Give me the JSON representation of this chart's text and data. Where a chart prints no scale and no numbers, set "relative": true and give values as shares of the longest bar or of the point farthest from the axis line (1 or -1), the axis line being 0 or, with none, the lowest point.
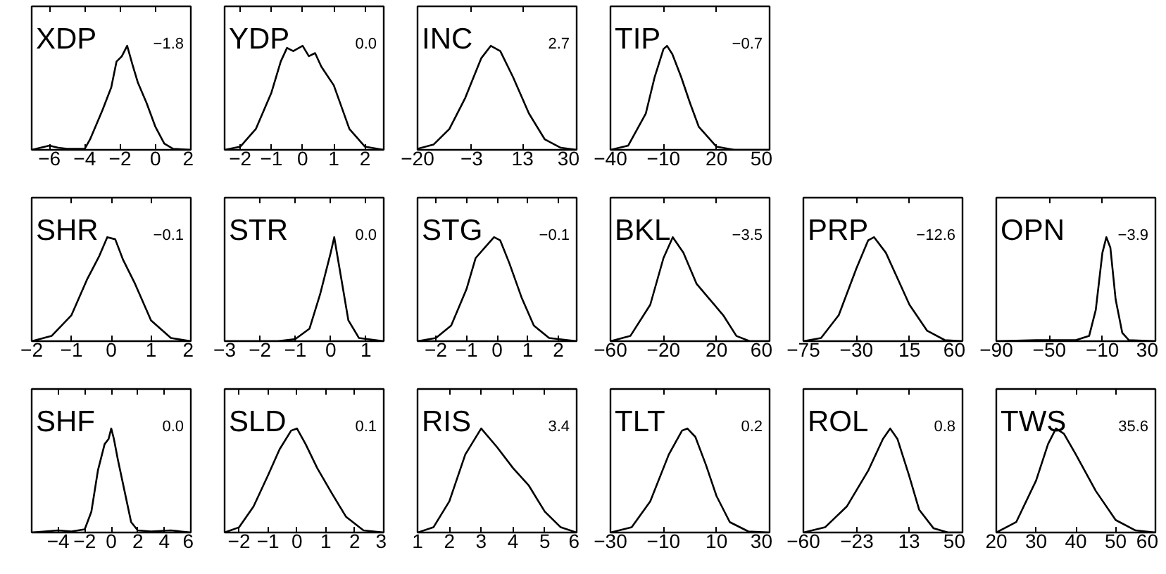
{
  "chart_data": [
    {
      "type": "line",
      "title": "XDP",
      "annotations": [
        "−1.8"
      ],
      "relative": true,
      "tick_labels": "x",
      "xlim": [
        -7,
        2
      ],
      "xticks": [
        {
          "value": -6,
          "label": "−6"
        },
        {
          "value": -4,
          "label": "−4"
        },
        {
          "value": -2,
          "label": "−2"
        },
        0,
        2
      ],
      "x": [
        -7,
        -6.5,
        -6,
        -5.5,
        -5,
        -4,
        -3.7,
        -3,
        -2.5,
        -2.2,
        -1.9,
        -1.6,
        -1.3,
        -1,
        -0.5,
        0,
        0.5,
        1,
        2
      ],
      "series": [
        {
          "color": "#000000",
          "values": [
            0,
            0.02,
            0.04,
            0.02,
            0.01,
            0.01,
            0.1,
            0.38,
            0.6,
            0.85,
            0.9,
            1,
            0.82,
            0.65,
            0.45,
            0.22,
            0.06,
            0.01,
            0
          ]
        }
      ]
    },
    {
      "type": "line",
      "title": "YDP",
      "annotations": [
        "0.0"
      ],
      "relative": true,
      "tick_labels": "x",
      "xlim": [
        -2.5,
        2.6
      ],
      "xticks": [
        {
          "value": -2,
          "label": "−2"
        },
        {
          "value": -1,
          "label": "−1"
        },
        0,
        1,
        2
      ],
      "x": [
        -2.5,
        -2,
        -1.5,
        -1,
        -0.7,
        -0.5,
        -0.3,
        0,
        0.2,
        0.4,
        0.6,
        1,
        1.5,
        2,
        2.6
      ],
      "series": [
        {
          "color": "#000000",
          "values": [
            0,
            0.03,
            0.2,
            0.55,
            0.85,
            0.98,
            0.95,
            1,
            0.9,
            0.93,
            0.8,
            0.62,
            0.2,
            0.03,
            0
          ]
        }
      ]
    },
    {
      "type": "line",
      "title": "INC",
      "annotations": [
        "2.7"
      ],
      "relative": true,
      "tick_labels": "x",
      "xlim": [
        -20,
        30
      ],
      "xticks": [
        {
          "value": -20,
          "label": "−20"
        },
        {
          "value": -3,
          "label": "−3"
        },
        13,
        30
      ],
      "x": [
        -20,
        -15,
        -10,
        -5,
        0,
        3,
        6,
        10,
        15,
        20,
        25,
        30
      ],
      "series": [
        {
          "color": "#000000",
          "values": [
            0.01,
            0.05,
            0.2,
            0.5,
            0.88,
            1,
            0.95,
            0.7,
            0.35,
            0.1,
            0.02,
            0
          ]
        }
      ]
    },
    {
      "type": "line",
      "title": "TIP",
      "annotations": [
        "−0.7"
      ],
      "relative": true,
      "tick_labels": "x",
      "xlim": [
        -40,
        50
      ],
      "xticks": [
        {
          "value": -40,
          "label": "−40"
        },
        {
          "value": -10,
          "label": "−10"
        },
        20,
        50
      ],
      "x": [
        -40,
        -30,
        -20,
        -15,
        -10,
        -8,
        -5,
        0,
        5,
        10,
        20,
        30,
        50
      ],
      "series": [
        {
          "color": "#000000",
          "values": [
            0,
            0.04,
            0.35,
            0.7,
            0.97,
            1,
            0.92,
            0.7,
            0.45,
            0.22,
            0.03,
            0,
            0
          ]
        }
      ]
    },
    {
      "type": "line",
      "title": "SHR",
      "annotations": [
        "−0.1"
      ],
      "relative": true,
      "tick_labels": "x",
      "xlim": [
        -2,
        2
      ],
      "xticks": [
        {
          "value": -2,
          "label": "−2"
        },
        {
          "value": -1,
          "label": "−1"
        },
        0,
        1,
        2
      ],
      "x": [
        -2,
        -1.5,
        -1,
        -0.6,
        -0.3,
        -0.1,
        0.1,
        0.3,
        0.6,
        1,
        1.5,
        2
      ],
      "series": [
        {
          "color": "#000000",
          "values": [
            0,
            0.05,
            0.25,
            0.6,
            0.82,
            1,
            0.98,
            0.78,
            0.55,
            0.2,
            0.03,
            0
          ]
        }
      ]
    },
    {
      "type": "line",
      "title": "STR",
      "annotations": [
        "0.0"
      ],
      "relative": true,
      "tick_labels": "x",
      "xlim": [
        -3,
        1.5
      ],
      "xticks": [
        {
          "value": -3,
          "label": "−3"
        },
        {
          "value": -2,
          "label": "−2"
        },
        {
          "value": -1,
          "label": "−1"
        },
        0,
        1
      ],
      "x": [
        -3,
        -1.5,
        -1,
        -0.6,
        -0.3,
        0,
        0.1,
        0.3,
        0.5,
        0.8,
        1.5
      ],
      "series": [
        {
          "color": "#000000",
          "values": [
            0,
            0,
            0.02,
            0.12,
            0.45,
            0.85,
            1,
            0.6,
            0.2,
            0.03,
            0
          ]
        }
      ]
    },
    {
      "type": "line",
      "title": "STG",
      "annotations": [
        "−0.1"
      ],
      "relative": true,
      "tick_labels": "x",
      "xlim": [
        -2.6,
        2.6
      ],
      "xticks": [
        {
          "value": -2,
          "label": "−2"
        },
        {
          "value": -1,
          "label": "−1"
        },
        0,
        1,
        2
      ],
      "x": [
        -2.6,
        -2,
        -1.5,
        -1,
        -0.7,
        -0.4,
        -0.1,
        0.1,
        0.4,
        0.8,
        1.2,
        1.7,
        2.6
      ],
      "series": [
        {
          "color": "#000000",
          "values": [
            0,
            0.03,
            0.15,
            0.5,
            0.8,
            0.9,
            1,
            0.97,
            0.75,
            0.42,
            0.15,
            0.03,
            0
          ]
        }
      ]
    },
    {
      "type": "line",
      "title": "BKL",
      "annotations": [
        "−3.5"
      ],
      "relative": true,
      "tick_labels": "x",
      "xlim": [
        -60,
        60
      ],
      "xticks": [
        {
          "value": -60,
          "label": "−60"
        },
        {
          "value": -20,
          "label": "−20"
        },
        20,
        60
      ],
      "x": [
        -60,
        -45,
        -30,
        -20,
        -13,
        -5,
        5,
        15,
        25,
        35,
        45,
        60
      ],
      "series": [
        {
          "color": "#000000",
          "values": [
            0,
            0.05,
            0.35,
            0.8,
            1,
            0.85,
            0.55,
            0.4,
            0.25,
            0.05,
            0,
            0
          ]
        }
      ]
    },
    {
      "type": "line",
      "title": "PRP",
      "annotations": [
        "−12.6"
      ],
      "relative": true,
      "tick_labels": "x",
      "xlim": [
        -75,
        60
      ],
      "xticks": [
        {
          "value": -75,
          "label": "−75"
        },
        {
          "value": -30,
          "label": "−30"
        },
        15,
        60
      ],
      "x": [
        -75,
        -60,
        -45,
        -30,
        -20,
        -15,
        -5,
        5,
        15,
        30,
        45,
        60
      ],
      "series": [
        {
          "color": "#000000",
          "values": [
            0,
            0.03,
            0.25,
            0.7,
            0.97,
            1,
            0.85,
            0.6,
            0.35,
            0.1,
            0.01,
            0
          ]
        }
      ]
    },
    {
      "type": "line",
      "title": "OPN",
      "annotations": [
        "−3.9"
      ],
      "relative": true,
      "tick_labels": "x",
      "xlim": [
        -90,
        30
      ],
      "xticks": [
        {
          "value": -90,
          "label": "−90"
        },
        {
          "value": -50,
          "label": "−50"
        },
        {
          "value": -10,
          "label": "−10"
        },
        30
      ],
      "x": [
        -90,
        -60,
        -30,
        -20,
        -15,
        -10,
        -7,
        -4,
        0,
        5,
        10,
        30
      ],
      "series": [
        {
          "color": "#000000",
          "values": [
            0,
            0.01,
            0.01,
            0.05,
            0.3,
            0.85,
            1,
            0.9,
            0.4,
            0.08,
            0.01,
            0
          ]
        }
      ]
    },
    {
      "type": "line",
      "title": "SHF",
      "annotations": [
        "0.0"
      ],
      "relative": true,
      "tick_labels": "x",
      "xlim": [
        -6,
        6
      ],
      "xticks": [
        {
          "value": -4,
          "label": "−4"
        },
        {
          "value": -2,
          "label": "−2"
        },
        0,
        2,
        4,
        6
      ],
      "x": [
        -6,
        -4,
        -3,
        -2,
        -1.5,
        -1,
        -0.5,
        -0.2,
        0,
        0.2,
        0.5,
        1,
        1.5,
        2,
        3,
        4.5,
        6
      ],
      "series": [
        {
          "color": "#000000",
          "values": [
            0,
            0.02,
            0.01,
            0.03,
            0.2,
            0.6,
            0.85,
            0.9,
            1,
            0.9,
            0.7,
            0.4,
            0.1,
            0.02,
            0.01,
            0.02,
            0
          ]
        }
      ]
    },
    {
      "type": "line",
      "title": "SLD",
      "annotations": [
        "0.1"
      ],
      "relative": true,
      "tick_labels": "x",
      "xlim": [
        -2.5,
        3
      ],
      "xticks": [
        {
          "value": -2,
          "label": "−2"
        },
        {
          "value": -1,
          "label": "−1"
        },
        0,
        1,
        2,
        3
      ],
      "x": [
        -2.5,
        -2,
        -1.5,
        -1,
        -0.6,
        -0.2,
        0,
        0.3,
        0.7,
        1.2,
        1.7,
        2.3,
        3
      ],
      "series": [
        {
          "color": "#000000",
          "values": [
            0,
            0.05,
            0.25,
            0.55,
            0.8,
            0.98,
            1,
            0.85,
            0.62,
            0.38,
            0.15,
            0.02,
            0
          ]
        }
      ]
    },
    {
      "type": "line",
      "title": "RIS",
      "annotations": [
        "3.4"
      ],
      "relative": true,
      "tick_labels": "x",
      "xlim": [
        1,
        6
      ],
      "xticks": [
        1,
        2,
        3,
        4,
        5,
        6
      ],
      "x": [
        1,
        1.5,
        2,
        2.5,
        3,
        3.5,
        4,
        4.5,
        5,
        5.5,
        6
      ],
      "series": [
        {
          "color": "#000000",
          "values": [
            0,
            0.05,
            0.3,
            0.75,
            1,
            0.82,
            0.62,
            0.45,
            0.2,
            0.05,
            0
          ]
        }
      ]
    },
    {
      "type": "line",
      "title": "TLT",
      "annotations": [
        "0.2"
      ],
      "relative": true,
      "tick_labels": "x",
      "xlim": [
        -30,
        30
      ],
      "xticks": [
        {
          "value": -30,
          "label": "−30"
        },
        {
          "value": -10,
          "label": "−10"
        },
        10,
        30
      ],
      "x": [
        -30,
        -22,
        -15,
        -8,
        -3,
        -1,
        2,
        6,
        10,
        15,
        22,
        30
      ],
      "series": [
        {
          "color": "#000000",
          "values": [
            0,
            0.05,
            0.3,
            0.75,
            0.98,
            1,
            0.92,
            0.65,
            0.35,
            0.1,
            0.01,
            0
          ]
        }
      ]
    },
    {
      "type": "line",
      "title": "ROL",
      "annotations": [
        "0.8"
      ],
      "relative": true,
      "tick_labels": "x",
      "xlim": [
        -60,
        50
      ],
      "xticks": [
        {
          "value": -60,
          "label": "−60"
        },
        {
          "value": -23,
          "label": "−23"
        },
        13,
        50
      ],
      "x": [
        -60,
        -45,
        -30,
        -15,
        -5,
        0,
        5,
        13,
        20,
        30,
        40,
        50
      ],
      "series": [
        {
          "color": "#000000",
          "values": [
            0,
            0.05,
            0.25,
            0.6,
            0.9,
            1,
            0.9,
            0.55,
            0.22,
            0.04,
            0,
            0
          ]
        }
      ]
    },
    {
      "type": "line",
      "title": "TWS",
      "annotations": [
        "35.6"
      ],
      "relative": true,
      "tick_labels": "x",
      "xlim": [
        20,
        60
      ],
      "xticks": [
        20,
        30,
        40,
        50,
        60
      ],
      "x": [
        20,
        25,
        30,
        33,
        35,
        37,
        40,
        45,
        50,
        55,
        60
      ],
      "series": [
        {
          "color": "#000000",
          "values": [
            0,
            0.1,
            0.5,
            0.85,
            1,
            0.95,
            0.75,
            0.4,
            0.12,
            0.02,
            0
          ]
        }
      ]
    }
  ]
}
